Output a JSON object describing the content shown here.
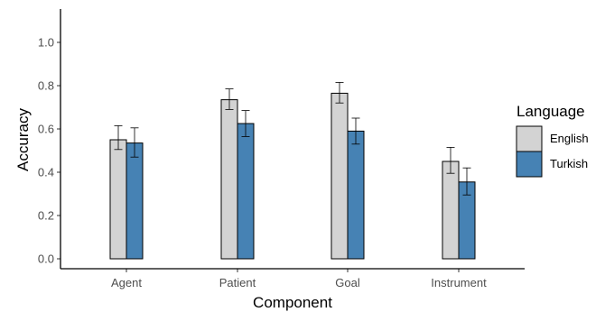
{
  "chart_data": {
    "type": "bar",
    "title": "",
    "xlabel": "Component",
    "ylabel": "Accuracy",
    "categories": [
      "Agent",
      "Patient",
      "Goal",
      "Instrument"
    ],
    "ylim": [
      0,
      1.15
    ],
    "yticks": [
      "0.0",
      "0.2",
      "0.4",
      "0.6",
      "0.8",
      "1.0"
    ],
    "grid": false,
    "legend": {
      "title": "Language",
      "position": "right"
    },
    "series": [
      {
        "name": "English",
        "color": "#d3d3d3",
        "values": [
          0.55,
          0.735,
          0.765,
          0.45
        ],
        "error_low": [
          0.505,
          0.69,
          0.72,
          0.395
        ],
        "error_high": [
          0.615,
          0.785,
          0.815,
          0.515
        ]
      },
      {
        "name": "Turkish",
        "color": "#4682b4",
        "values": [
          0.535,
          0.625,
          0.59,
          0.355
        ],
        "error_low": [
          0.47,
          0.565,
          0.53,
          0.295
        ],
        "error_high": [
          0.605,
          0.685,
          0.65,
          0.42
        ]
      }
    ]
  }
}
